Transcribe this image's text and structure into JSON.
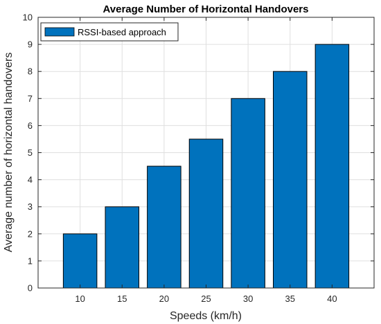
{
  "chart_data": {
    "type": "bar",
    "title": "Average Number of Horizontal Handovers",
    "xlabel": "Speeds (km/h)",
    "ylabel": "Average number of horizontal handovers",
    "categories": [
      "10",
      "15",
      "20",
      "25",
      "30",
      "35",
      "40"
    ],
    "series": [
      {
        "name": "RSSI-based approach",
        "values": [
          2,
          3,
          4.5,
          5.5,
          7,
          8,
          9
        ],
        "color": "#0072BD"
      }
    ],
    "ylim": [
      0,
      10
    ],
    "yticks": [
      0,
      1,
      2,
      3,
      4,
      5,
      6,
      7,
      8,
      9,
      10
    ],
    "grid": true,
    "legend_position": "top-left"
  }
}
